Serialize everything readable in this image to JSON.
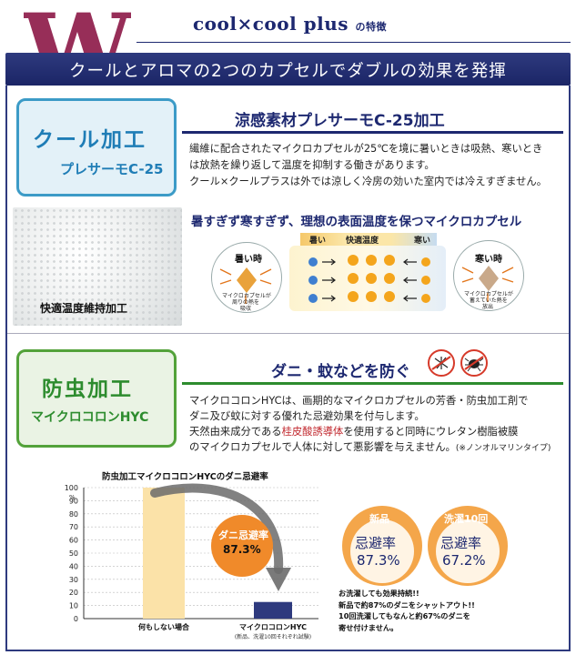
{
  "header": {
    "brand": "cool×cool plus",
    "brand_suffix": "の特徴",
    "banner": "クールとアロマの2つのカプセルでダブルの効果を発揮",
    "big_letter": "W"
  },
  "colors": {
    "navy": "#1d2870",
    "cool_blue": "#1f7db6",
    "green": "#2d8c2e",
    "orange": "#f08a2a",
    "w_magenta": "#8f1d4a"
  },
  "cool": {
    "title": "クール加工",
    "subtitle": "プレサーモC-25",
    "heading": "涼感素材プレサーモC-25加工",
    "lines": [
      "繊維に配合されたマイクロカプセルが25℃を境に暑いときは吸熱、寒いとき",
      "は放熱を繰り返して温度を抑制する働きがあります。",
      "クール×クールプラスは外では涼しく冷房の効いた室内では冷えすぎません。"
    ],
    "fabric_label": "快適温度維持加工",
    "capsule_heading": "暑すぎず寒すぎず、理想の表面温度を保つマイクロカプセル",
    "temp_hot": "暑い",
    "temp_mid": "快適温度",
    "temp_cold": "寒い",
    "hot_title": "暑い時",
    "hot_caption": [
      "マイクロカプセルが",
      "周りの熱を",
      "吸収"
    ],
    "cold_title": "寒い時",
    "cold_caption": [
      "マイクロカプセルが",
      "蓄えていた熱を",
      "放出"
    ]
  },
  "insect": {
    "title": "防虫加工",
    "subtitle": "マイクロコロンHYC",
    "heading": "ダニ・蚊などを防ぐ",
    "line1": "マイクロコロンHYCは、画期的なマイクロカプセルの芳香・防虫加工剤で",
    "line2": "ダニ及び蚊に対する優れた忌避効果を付与します。",
    "line3a": "天然由来成分である",
    "line3_red": "桂皮酸誘導体",
    "line3b": "を使用すると同時にウレタン樹脂被膜",
    "line4": "のマイクロカプセルで人体に対して悪影響を与えません。",
    "line4_note": "(※ノンオルマリンタイプ)"
  },
  "stats": {
    "new_top": "新品",
    "new_label": "忌避率",
    "new_value": "87.3%",
    "wash_top": "洗濯10回",
    "wash_label": "忌避率",
    "wash_value": "67.2%",
    "footnote": [
      "お洗濯しても効果持続!!",
      "新品で約87%のダニをシャットアウト!!",
      "10回洗濯してもなんと約67%のダニを",
      "寄せ付けません。"
    ]
  },
  "chart_data": {
    "type": "bar",
    "title": "防虫加工マイクロコロンHYCのダニ忌避率",
    "categories": [
      "何もしない場合",
      "マイクロコロンHYC"
    ],
    "category_note": "(新品、洗濯10回それぞれ試験)",
    "values": [
      100,
      12.7
    ],
    "ylim": [
      0,
      100
    ],
    "yticks": [
      0,
      10,
      20,
      30,
      40,
      50,
      60,
      70,
      80,
      90,
      100
    ],
    "yunit": "%",
    "callout_label": "ダニ忌避率",
    "callout_value": "87.3%"
  }
}
